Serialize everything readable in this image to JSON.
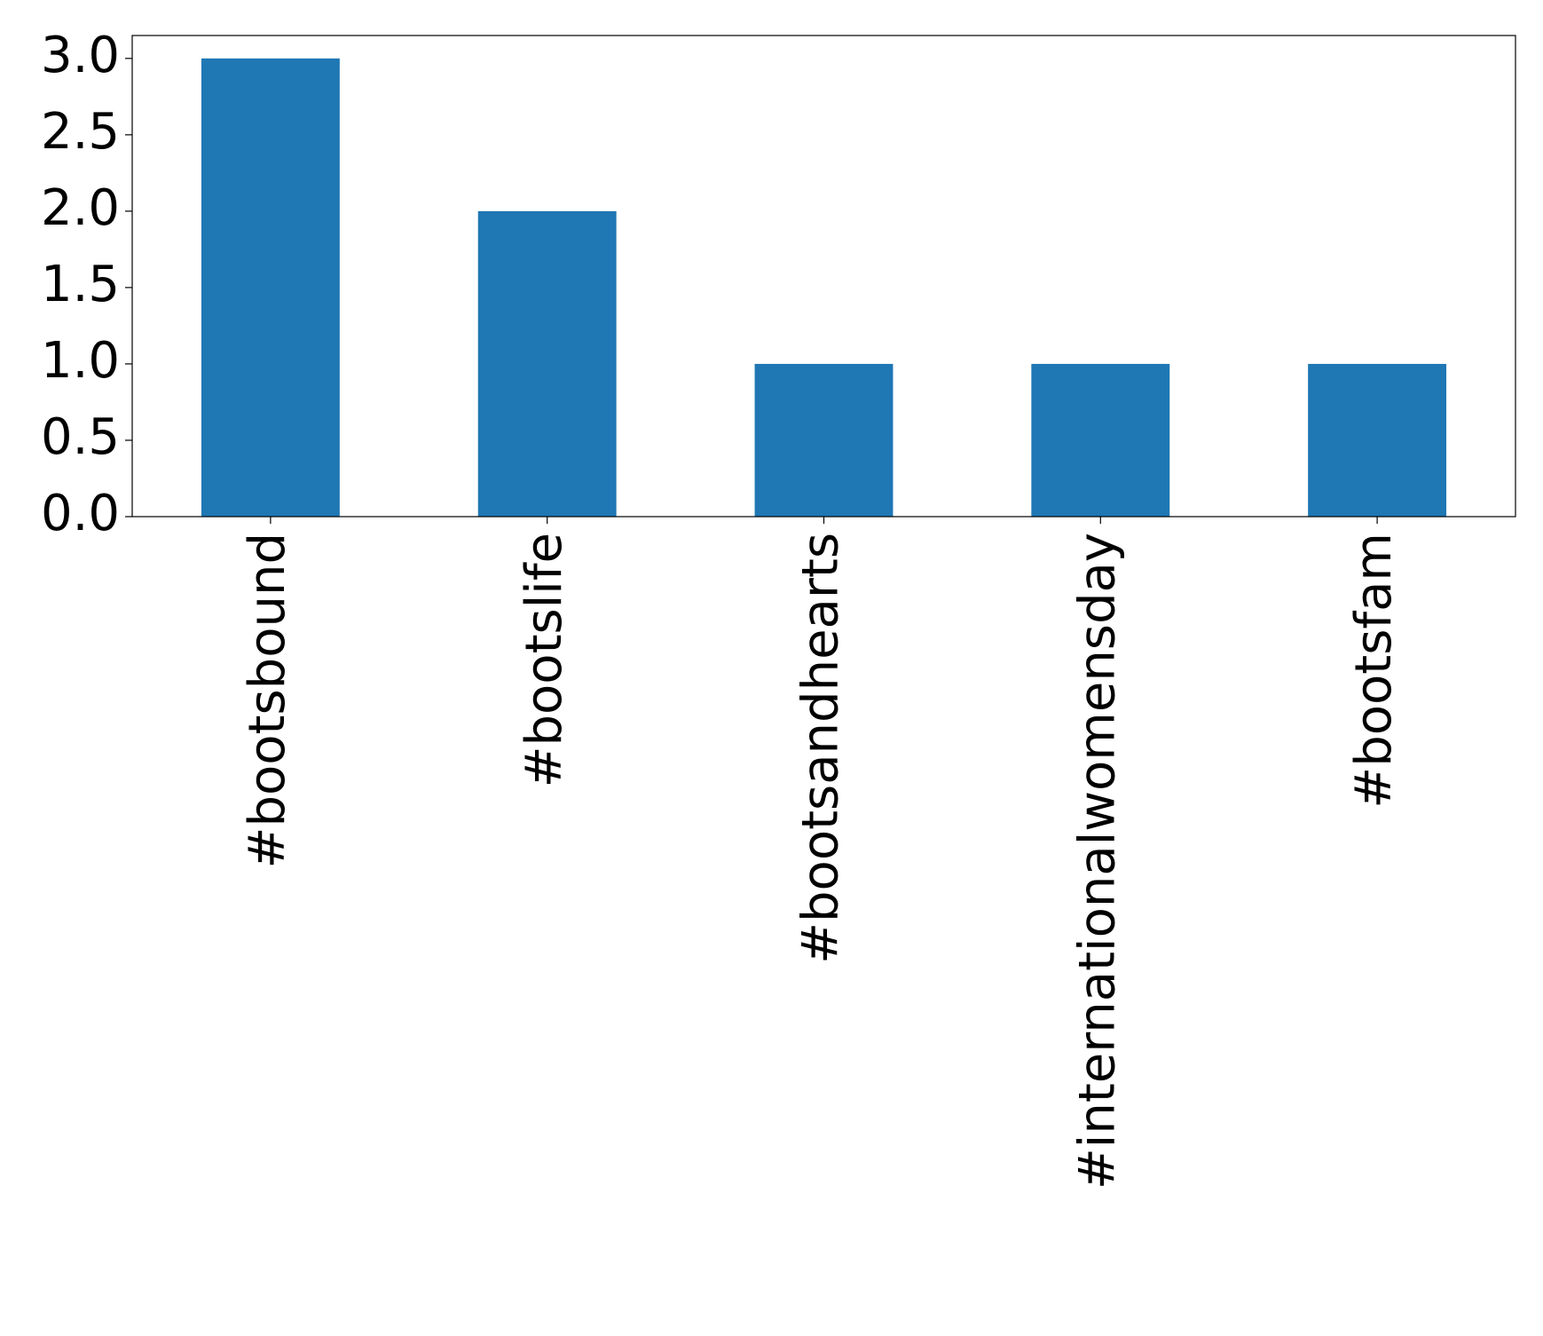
{
  "chart_data": {
    "type": "bar",
    "categories": [
      "#bootsbound",
      "#bootslife",
      "#bootsandhearts",
      "#internationalwomensday",
      "#bootsfam"
    ],
    "values": [
      3,
      2,
      1,
      1,
      1
    ],
    "color": "#1f77b4",
    "ylim": [
      0,
      3.15
    ],
    "yticks": [
      {
        "value": 0,
        "label": "0.0"
      },
      {
        "value": 0.5,
        "label": "0.5"
      },
      {
        "value": 1,
        "label": "1.0"
      },
      {
        "value": 1.5,
        "label": "1.5"
      },
      {
        "value": 2,
        "label": "2.0"
      },
      {
        "value": 2.5,
        "label": "2.5"
      },
      {
        "value": 3,
        "label": "3.0"
      }
    ],
    "grid": false
  }
}
